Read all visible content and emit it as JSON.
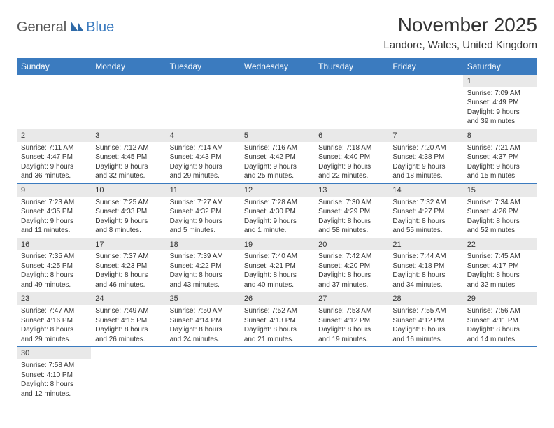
{
  "logo": {
    "part1": "General",
    "part2": "Blue"
  },
  "title": "November 2025",
  "location": "Landore, Wales, United Kingdom",
  "colors": {
    "header_bg": "#3b7bbf",
    "header_text": "#ffffff",
    "daynum_bg": "#e9e9e9",
    "row_border": "#3b7bbf",
    "text": "#333333",
    "background": "#ffffff"
  },
  "days_of_week": [
    "Sunday",
    "Monday",
    "Tuesday",
    "Wednesday",
    "Thursday",
    "Friday",
    "Saturday"
  ],
  "weeks": [
    [
      null,
      null,
      null,
      null,
      null,
      null,
      {
        "n": "1",
        "sunrise": "Sunrise: 7:09 AM",
        "sunset": "Sunset: 4:49 PM",
        "daylight": "Daylight: 9 hours and 39 minutes."
      }
    ],
    [
      {
        "n": "2",
        "sunrise": "Sunrise: 7:11 AM",
        "sunset": "Sunset: 4:47 PM",
        "daylight": "Daylight: 9 hours and 36 minutes."
      },
      {
        "n": "3",
        "sunrise": "Sunrise: 7:12 AM",
        "sunset": "Sunset: 4:45 PM",
        "daylight": "Daylight: 9 hours and 32 minutes."
      },
      {
        "n": "4",
        "sunrise": "Sunrise: 7:14 AM",
        "sunset": "Sunset: 4:43 PM",
        "daylight": "Daylight: 9 hours and 29 minutes."
      },
      {
        "n": "5",
        "sunrise": "Sunrise: 7:16 AM",
        "sunset": "Sunset: 4:42 PM",
        "daylight": "Daylight: 9 hours and 25 minutes."
      },
      {
        "n": "6",
        "sunrise": "Sunrise: 7:18 AM",
        "sunset": "Sunset: 4:40 PM",
        "daylight": "Daylight: 9 hours and 22 minutes."
      },
      {
        "n": "7",
        "sunrise": "Sunrise: 7:20 AM",
        "sunset": "Sunset: 4:38 PM",
        "daylight": "Daylight: 9 hours and 18 minutes."
      },
      {
        "n": "8",
        "sunrise": "Sunrise: 7:21 AM",
        "sunset": "Sunset: 4:37 PM",
        "daylight": "Daylight: 9 hours and 15 minutes."
      }
    ],
    [
      {
        "n": "9",
        "sunrise": "Sunrise: 7:23 AM",
        "sunset": "Sunset: 4:35 PM",
        "daylight": "Daylight: 9 hours and 11 minutes."
      },
      {
        "n": "10",
        "sunrise": "Sunrise: 7:25 AM",
        "sunset": "Sunset: 4:33 PM",
        "daylight": "Daylight: 9 hours and 8 minutes."
      },
      {
        "n": "11",
        "sunrise": "Sunrise: 7:27 AM",
        "sunset": "Sunset: 4:32 PM",
        "daylight": "Daylight: 9 hours and 5 minutes."
      },
      {
        "n": "12",
        "sunrise": "Sunrise: 7:28 AM",
        "sunset": "Sunset: 4:30 PM",
        "daylight": "Daylight: 9 hours and 1 minute."
      },
      {
        "n": "13",
        "sunrise": "Sunrise: 7:30 AM",
        "sunset": "Sunset: 4:29 PM",
        "daylight": "Daylight: 8 hours and 58 minutes."
      },
      {
        "n": "14",
        "sunrise": "Sunrise: 7:32 AM",
        "sunset": "Sunset: 4:27 PM",
        "daylight": "Daylight: 8 hours and 55 minutes."
      },
      {
        "n": "15",
        "sunrise": "Sunrise: 7:34 AM",
        "sunset": "Sunset: 4:26 PM",
        "daylight": "Daylight: 8 hours and 52 minutes."
      }
    ],
    [
      {
        "n": "16",
        "sunrise": "Sunrise: 7:35 AM",
        "sunset": "Sunset: 4:25 PM",
        "daylight": "Daylight: 8 hours and 49 minutes."
      },
      {
        "n": "17",
        "sunrise": "Sunrise: 7:37 AM",
        "sunset": "Sunset: 4:23 PM",
        "daylight": "Daylight: 8 hours and 46 minutes."
      },
      {
        "n": "18",
        "sunrise": "Sunrise: 7:39 AM",
        "sunset": "Sunset: 4:22 PM",
        "daylight": "Daylight: 8 hours and 43 minutes."
      },
      {
        "n": "19",
        "sunrise": "Sunrise: 7:40 AM",
        "sunset": "Sunset: 4:21 PM",
        "daylight": "Daylight: 8 hours and 40 minutes."
      },
      {
        "n": "20",
        "sunrise": "Sunrise: 7:42 AM",
        "sunset": "Sunset: 4:20 PM",
        "daylight": "Daylight: 8 hours and 37 minutes."
      },
      {
        "n": "21",
        "sunrise": "Sunrise: 7:44 AM",
        "sunset": "Sunset: 4:18 PM",
        "daylight": "Daylight: 8 hours and 34 minutes."
      },
      {
        "n": "22",
        "sunrise": "Sunrise: 7:45 AM",
        "sunset": "Sunset: 4:17 PM",
        "daylight": "Daylight: 8 hours and 32 minutes."
      }
    ],
    [
      {
        "n": "23",
        "sunrise": "Sunrise: 7:47 AM",
        "sunset": "Sunset: 4:16 PM",
        "daylight": "Daylight: 8 hours and 29 minutes."
      },
      {
        "n": "24",
        "sunrise": "Sunrise: 7:49 AM",
        "sunset": "Sunset: 4:15 PM",
        "daylight": "Daylight: 8 hours and 26 minutes."
      },
      {
        "n": "25",
        "sunrise": "Sunrise: 7:50 AM",
        "sunset": "Sunset: 4:14 PM",
        "daylight": "Daylight: 8 hours and 24 minutes."
      },
      {
        "n": "26",
        "sunrise": "Sunrise: 7:52 AM",
        "sunset": "Sunset: 4:13 PM",
        "daylight": "Daylight: 8 hours and 21 minutes."
      },
      {
        "n": "27",
        "sunrise": "Sunrise: 7:53 AM",
        "sunset": "Sunset: 4:12 PM",
        "daylight": "Daylight: 8 hours and 19 minutes."
      },
      {
        "n": "28",
        "sunrise": "Sunrise: 7:55 AM",
        "sunset": "Sunset: 4:12 PM",
        "daylight": "Daylight: 8 hours and 16 minutes."
      },
      {
        "n": "29",
        "sunrise": "Sunrise: 7:56 AM",
        "sunset": "Sunset: 4:11 PM",
        "daylight": "Daylight: 8 hours and 14 minutes."
      }
    ],
    [
      {
        "n": "30",
        "sunrise": "Sunrise: 7:58 AM",
        "sunset": "Sunset: 4:10 PM",
        "daylight": "Daylight: 8 hours and 12 minutes."
      },
      null,
      null,
      null,
      null,
      null,
      null
    ]
  ]
}
